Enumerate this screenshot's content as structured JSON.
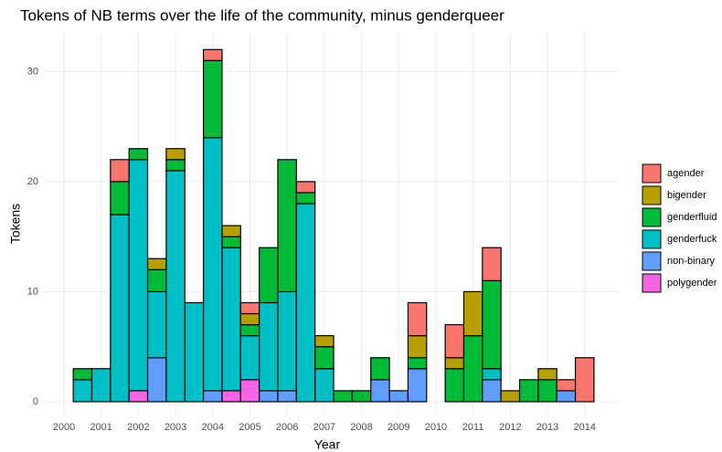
{
  "chart_data": {
    "type": "histogram",
    "stacked": true,
    "title": "Tokens of NB terms over the life of the community, minus genderqueer",
    "x_label": "Year",
    "y_label": "Tokens",
    "bins": [
      2000.25,
      2000.75,
      2001.25,
      2001.75,
      2002.25,
      2002.75,
      2003.25,
      2003.75,
      2004.25,
      2004.75,
      2005.25,
      2005.75,
      2006.25,
      2006.75,
      2007.25,
      2007.75,
      2008.25,
      2008.75,
      2009.25,
      2009.75,
      2010.25,
      2010.75,
      2011.25,
      2011.75,
      2012.25,
      2012.75,
      2013.25,
      2013.75,
      2014.25
    ],
    "series": [
      {
        "name": "agender",
        "color": "#F8766D",
        "values": [
          0,
          0,
          2,
          0,
          0,
          0,
          0,
          1,
          0,
          1,
          0,
          0,
          1,
          0,
          0,
          0,
          0,
          0,
          3,
          0,
          3,
          0,
          3,
          0,
          0,
          0,
          1,
          4
        ]
      },
      {
        "name": "bigender",
        "color": "#B79F00",
        "values": [
          0,
          0,
          0,
          0,
          1,
          1,
          0,
          0,
          1,
          1,
          0,
          0,
          0,
          1,
          0,
          0,
          0,
          0,
          2,
          0,
          1,
          4,
          0,
          1,
          0,
          1,
          0,
          0
        ]
      },
      {
        "name": "genderfluid",
        "color": "#00BA38",
        "values": [
          1,
          0,
          3,
          1,
          2,
          1,
          0,
          7,
          1,
          1,
          5,
          12,
          1,
          2,
          1,
          1,
          2,
          0,
          1,
          0,
          3,
          6,
          8,
          0,
          2,
          2,
          0,
          0
        ]
      },
      {
        "name": "genderfuck",
        "color": "#00BFC4",
        "values": [
          2,
          3,
          17,
          21,
          6,
          21,
          9,
          23,
          13,
          4,
          8,
          9,
          18,
          3,
          0,
          0,
          0,
          0,
          0,
          0,
          0,
          0,
          1,
          0,
          0,
          0,
          0,
          0
        ]
      },
      {
        "name": "non-binary",
        "color": "#619CFF",
        "values": [
          0,
          0,
          0,
          0,
          4,
          0,
          0,
          1,
          0,
          0,
          1,
          1,
          0,
          0,
          0,
          0,
          2,
          1,
          3,
          0,
          0,
          0,
          2,
          0,
          0,
          0,
          1,
          0
        ]
      },
      {
        "name": "polygender",
        "color": "#F564E3",
        "values": [
          0,
          0,
          0,
          1,
          0,
          0,
          0,
          0,
          1,
          2,
          0,
          0,
          0,
          0,
          0,
          0,
          0,
          0,
          0,
          0,
          0,
          0,
          0,
          0,
          0,
          0,
          0,
          0
        ]
      }
    ],
    "xlim": [
      1999.46,
      2014.94
    ],
    "ylim": [
      -1.25,
      33.6
    ],
    "xticks": [
      2000,
      2001,
      2002,
      2003,
      2004,
      2005,
      2006,
      2007,
      2008,
      2009,
      2010,
      2011,
      2012,
      2013,
      2014
    ],
    "yticks": [
      0,
      10,
      20,
      30
    ],
    "grid": true,
    "legend": "right"
  }
}
